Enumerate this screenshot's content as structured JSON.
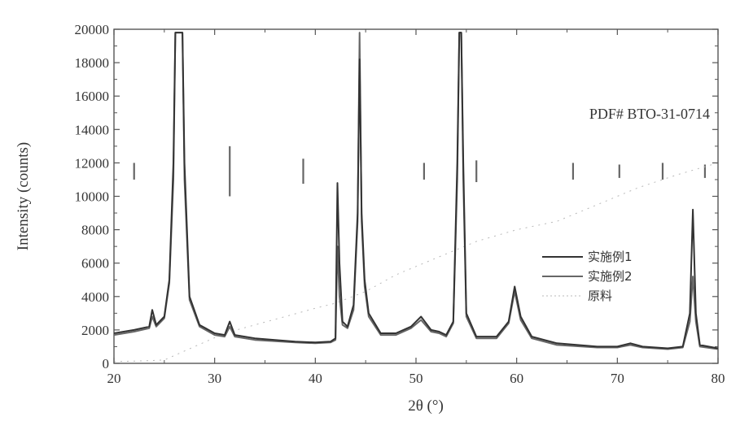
{
  "chart_data": {
    "type": "line",
    "title": "",
    "xlabel": "2θ (°)",
    "ylabel": "Intensity (counts)",
    "xlim": [
      20,
      80
    ],
    "ylim": [
      0,
      20000
    ],
    "x_ticks": [
      "20",
      "30",
      "40",
      "50",
      "60",
      "70",
      "80"
    ],
    "y_ticks": [
      "0",
      "2000",
      "4000",
      "6000",
      "8000",
      "10000",
      "12000",
      "14000",
      "16000",
      "18000",
      "20000"
    ],
    "annotation": "PDF# BTO-31-0714",
    "reference_lines": {
      "y_base": 11500,
      "positions": [
        22,
        31.5,
        38.8,
        50.8,
        56.0,
        65.6,
        70.2,
        74.5,
        78.7
      ],
      "heights": [
        1000,
        3000,
        1500,
        1000,
        1300,
        1000,
        800,
        1000,
        800
      ]
    },
    "series": [
      {
        "name": "实施例1",
        "color": "#333333",
        "x": [
          20,
          22,
          23.5,
          23.8,
          24.2,
          25,
          25.5,
          25.9,
          26.1,
          26.3,
          26.8,
          27,
          27.5,
          28.5,
          30,
          31,
          31.5,
          32,
          34,
          38,
          40,
          41.5,
          42.0,
          42.2,
          42.4,
          42.7,
          43.2,
          43.8,
          44.2,
          44.4,
          44.6,
          44.9,
          45.3,
          46.5,
          48,
          49.5,
          50.5,
          51.5,
          52.3,
          53,
          53.7,
          54.1,
          54.3,
          54.5,
          54.7,
          55.0,
          56,
          58,
          59.2,
          59.8,
          60.4,
          61.5,
          64,
          68,
          70,
          71.3,
          72.5,
          75,
          76.5,
          77.2,
          77.5,
          77.8,
          78.2,
          80
        ],
        "values": [
          1800,
          2000,
          2200,
          3200,
          2300,
          2800,
          5000,
          12000,
          19800,
          19800,
          19800,
          12000,
          4000,
          2300,
          1800,
          1700,
          2500,
          1700,
          1500,
          1300,
          1250,
          1300,
          1500,
          10800,
          6000,
          2500,
          2200,
          3500,
          9000,
          18200,
          9000,
          5000,
          3000,
          1800,
          1800,
          2200,
          2800,
          2000,
          1900,
          1700,
          2500,
          12000,
          19800,
          19800,
          12000,
          3000,
          1600,
          1600,
          2500,
          4600,
          2800,
          1600,
          1200,
          1000,
          1000,
          1200,
          1000,
          900,
          1000,
          3000,
          9200,
          3000,
          1100,
          900
        ]
      },
      {
        "name": "实施例2",
        "color": "#666666",
        "x": [
          20,
          22,
          23.5,
          23.8,
          24.2,
          25,
          25.5,
          25.9,
          26.1,
          26.4,
          26.8,
          27,
          27.5,
          28.5,
          30,
          31,
          31.5,
          32,
          34,
          38,
          40,
          41.5,
          42.0,
          42.2,
          42.4,
          42.7,
          43.2,
          43.8,
          44.2,
          44.4,
          44.6,
          44.9,
          45.3,
          46.5,
          48,
          49.5,
          50.5,
          51.5,
          52.3,
          53,
          53.7,
          54.1,
          54.3,
          54.5,
          54.7,
          55.0,
          56,
          58,
          59.2,
          59.8,
          60.4,
          61.5,
          64,
          68,
          70,
          71.3,
          72.5,
          75,
          76.5,
          77.2,
          77.5,
          77.8,
          78.2,
          80
        ],
        "values": [
          1700,
          1900,
          2100,
          2800,
          2200,
          2700,
          4800,
          11000,
          19800,
          19800,
          19800,
          11000,
          3800,
          2200,
          1700,
          1600,
          2200,
          1600,
          1400,
          1250,
          1200,
          1250,
          1400,
          7000,
          4000,
          2300,
          2100,
          3200,
          8500,
          19800,
          8500,
          4600,
          2800,
          1700,
          1700,
          2100,
          2600,
          1900,
          1800,
          1600,
          2400,
          11000,
          19800,
          19800,
          11000,
          2800,
          1500,
          1500,
          2400,
          4300,
          2600,
          1500,
          1100,
          950,
          950,
          1100,
          950,
          850,
          950,
          2500,
          5200,
          2500,
          1000,
          850
        ]
      },
      {
        "name": "原料",
        "color": "#b8b8b8",
        "x": [
          20,
          23,
          25,
          28,
          31,
          34,
          37,
          40,
          42,
          45,
          48,
          52,
          56,
          60,
          64,
          68,
          72,
          76,
          80
        ],
        "values": [
          100,
          150,
          200,
          1000,
          1800,
          2300,
          2800,
          3300,
          3600,
          4300,
          5300,
          6300,
          7300,
          8000,
          8500,
          9500,
          10500,
          11300,
          12000
        ]
      }
    ]
  }
}
